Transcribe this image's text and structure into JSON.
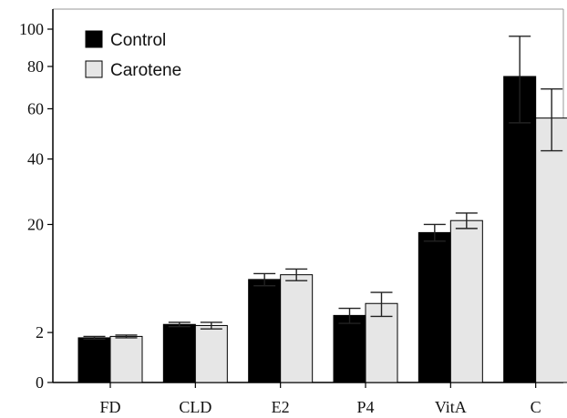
{
  "chart_data": {
    "type": "bar",
    "categories": [
      "FD",
      "CLD",
      "E2",
      "P4",
      "VitA",
      "C"
    ],
    "series": [
      {
        "name": "Control",
        "color": "#000000",
        "values": [
          1.6,
          2.7,
          8.5,
          3.6,
          18,
          75
        ],
        "errors": [
          0.1,
          0.2,
          1.0,
          0.8,
          2.0,
          21
        ]
      },
      {
        "name": "Carotene",
        "color": "#e6e6e6",
        "values": [
          1.7,
          2.6,
          9.3,
          5.0,
          21,
          56
        ],
        "errors": [
          0.1,
          0.3,
          1.0,
          1.5,
          2.0,
          13
        ]
      }
    ],
    "y_ticks": [
      0,
      2,
      20,
      40,
      60,
      80,
      100
    ],
    "ylim": [
      0,
      100
    ],
    "y_scale": "square-root",
    "legend_position": "top-left",
    "grid": false
  }
}
